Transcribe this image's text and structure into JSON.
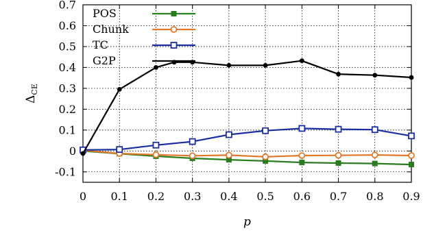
{
  "chart_data": {
    "type": "line",
    "x": [
      0,
      0.1,
      0.2,
      0.3,
      0.4,
      0.5,
      0.6,
      0.7,
      0.8,
      0.9
    ],
    "xlabel": "p",
    "ylabel_main": "Δ",
    "ylabel_sub": "CE",
    "xlim": [
      0,
      0.9
    ],
    "ylim": [
      -0.15,
      0.7
    ],
    "x_ticks": [
      "0",
      "0.1",
      "0.2",
      "0.3",
      "0.4",
      "0.5",
      "0.6",
      "0.7",
      "0.8",
      "0.9"
    ],
    "y_ticks": [
      "-0.1",
      "0",
      "0.1",
      "0.2",
      "0.3",
      "0.4",
      "0.5",
      "0.6",
      "0.7"
    ],
    "y_tick_values": [
      -0.1,
      0,
      0.1,
      0.2,
      0.3,
      0.4,
      0.5,
      0.6,
      0.7
    ],
    "grid": true,
    "legend_position": "top-left",
    "series": [
      {
        "name": "POS",
        "color": "#2a7d1e",
        "marker": "filled-square",
        "x": [
          0,
          0.1,
          0.2,
          0.3,
          0.4,
          0.5,
          0.6,
          0.7,
          0.8,
          0.9
        ],
        "values": [
          0.0,
          -0.013,
          -0.025,
          -0.035,
          -0.042,
          -0.048,
          -0.055,
          -0.058,
          -0.06,
          -0.065
        ]
      },
      {
        "name": "Chunk",
        "color": "#e0782a",
        "marker": "open-circle",
        "x": [
          0,
          0.1,
          0.2,
          0.3,
          0.4,
          0.5,
          0.6,
          0.7,
          0.8,
          0.9
        ],
        "values": [
          0.003,
          -0.012,
          -0.018,
          -0.023,
          -0.02,
          -0.028,
          -0.022,
          -0.021,
          -0.019,
          -0.022
        ]
      },
      {
        "name": "TC",
        "color": "#1a2ea0",
        "marker": "open-square",
        "x": [
          0,
          0.1,
          0.2,
          0.3,
          0.4,
          0.5,
          0.6,
          0.7,
          0.8,
          0.9
        ],
        "values": [
          0.005,
          0.007,
          0.028,
          0.045,
          0.078,
          0.097,
          0.108,
          0.104,
          0.102,
          0.072
        ]
      },
      {
        "name": "G2P",
        "color": "#000000",
        "marker": "filled-circle",
        "x": [
          0,
          0.1,
          0.2,
          0.25,
          0.3,
          0.4,
          0.5,
          0.6,
          0.7,
          0.8,
          0.9
        ],
        "values": [
          -0.012,
          0.295,
          0.4,
          0.425,
          0.425,
          0.41,
          0.41,
          0.432,
          0.368,
          0.363,
          0.352
        ]
      }
    ]
  }
}
